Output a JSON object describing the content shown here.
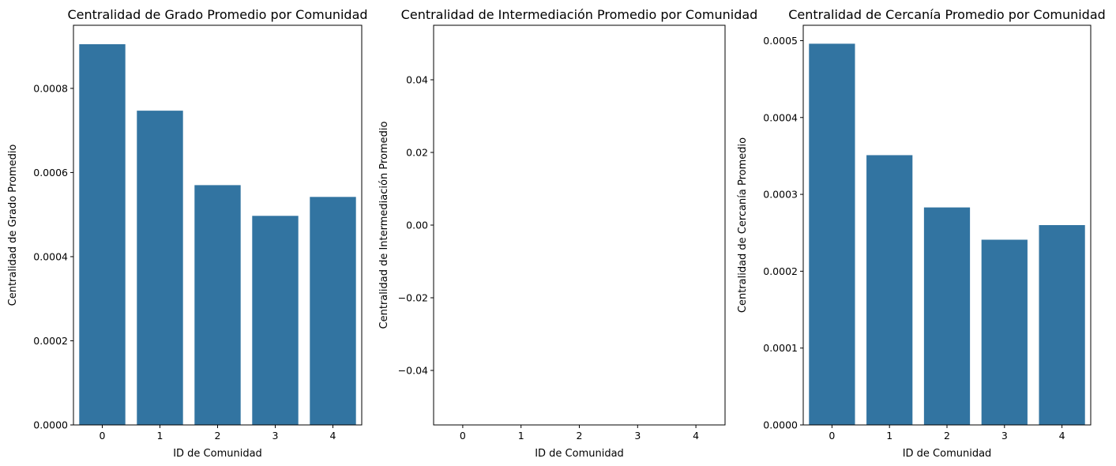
{
  "chart_data": [
    {
      "type": "bar",
      "title": "Centralidad de Grado Promedio por Comunidad",
      "xlabel": "ID de Comunidad",
      "ylabel": "Centralidad de Grado Promedio",
      "categories": [
        "0",
        "1",
        "2",
        "3",
        "4"
      ],
      "values": [
        0.000905,
        0.000747,
        0.00057,
        0.000497,
        0.000542
      ],
      "ylim": [
        0,
        0.00095
      ],
      "yticks": [
        0,
        0.0002,
        0.0004,
        0.0006,
        0.0008
      ],
      "ytick_labels": [
        "0.0000",
        "0.0002",
        "0.0004",
        "0.0006",
        "0.0008"
      ],
      "bar_color": "#3274a1",
      "grid": false
    },
    {
      "type": "bar",
      "title": "Centralidad de Intermediación Promedio por Comunidad",
      "xlabel": "ID de Comunidad",
      "ylabel": "Centralidad de Intermediación Promedio",
      "categories": [
        "0",
        "1",
        "2",
        "3",
        "4"
      ],
      "values": [
        0,
        0,
        0,
        0,
        0
      ],
      "ylim": [
        -0.055,
        0.055
      ],
      "yticks": [
        -0.04,
        -0.02,
        0,
        0.02,
        0.04
      ],
      "ytick_labels": [
        "−0.04",
        "−0.02",
        "0.00",
        "0.02",
        "0.04"
      ],
      "bar_color": "#3274a1",
      "grid": false
    },
    {
      "type": "bar",
      "title": "Centralidad de Cercanía Promedio por Comunidad",
      "xlabel": "ID de Comunidad",
      "ylabel": "Centralidad de Cercanía Promedio",
      "categories": [
        "0",
        "1",
        "2",
        "3",
        "4"
      ],
      "values": [
        0.000496,
        0.000351,
        0.000283,
        0.000241,
        0.00026
      ],
      "ylim": [
        0,
        0.00052
      ],
      "yticks": [
        0,
        0.0001,
        0.0002,
        0.0003,
        0.0004,
        0.0005
      ],
      "ytick_labels": [
        "0.0000",
        "0.0001",
        "0.0002",
        "0.0003",
        "0.0004",
        "0.0005"
      ],
      "bar_color": "#3274a1",
      "grid": false
    }
  ]
}
